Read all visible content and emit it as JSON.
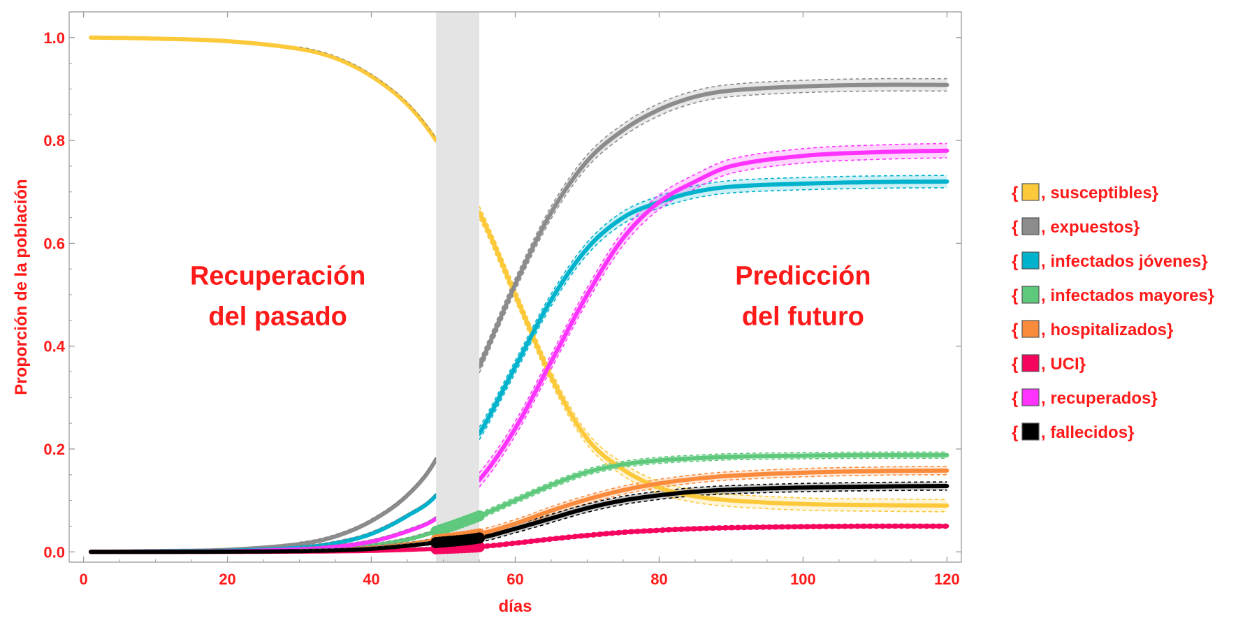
{
  "chart_data": {
    "type": "line",
    "xlabel": "días",
    "ylabel": "Proporción de la población",
    "xlim": [
      -2,
      122
    ],
    "ylim": [
      -0.02,
      1.05
    ],
    "xticks": [
      0,
      20,
      40,
      60,
      80,
      100,
      120
    ],
    "yticks": [
      0.0,
      0.2,
      0.4,
      0.6,
      0.8,
      1.0
    ],
    "xtick_labels": [
      "0",
      "20",
      "40",
      "60",
      "80",
      "100",
      "120"
    ],
    "ytick_labels": [
      "0.0",
      "0.2",
      "0.4",
      "0.6",
      "0.8",
      "1.0"
    ],
    "legend_position": "right",
    "shaded_region": {
      "x_start": 49,
      "x_end": 55,
      "color": "#e4e4e4"
    },
    "annotations": [
      {
        "lines": [
          "Recuperación",
          "del pasado"
        ],
        "x": 27,
        "y": 0.52
      },
      {
        "lines": [
          "Predicción",
          "del futuro"
        ],
        "x": 100,
        "y": 0.52
      }
    ],
    "x": [
      1,
      10,
      20,
      30,
      35,
      40,
      45,
      49,
      55,
      60,
      65,
      70,
      75,
      80,
      85,
      90,
      100,
      110,
      120
    ],
    "series": [
      {
        "name": "susceptibles",
        "color": "#fcc93a",
        "values": [
          1.0,
          0.998,
          0.993,
          0.978,
          0.96,
          0.925,
          0.87,
          0.8,
          0.66,
          0.5,
          0.34,
          0.22,
          0.16,
          0.125,
          0.108,
          0.1,
          0.093,
          0.091,
          0.09
        ],
        "band": 0.012
      },
      {
        "name": "expuestos",
        "color": "#8c8c8c",
        "values": [
          0.0,
          0.0015,
          0.004,
          0.015,
          0.03,
          0.06,
          0.11,
          0.18,
          0.36,
          0.52,
          0.66,
          0.76,
          0.82,
          0.86,
          0.885,
          0.897,
          0.905,
          0.908,
          0.908
        ],
        "band": 0.012
      },
      {
        "name": "infectados jóvenes",
        "color": "#00b2cc",
        "values": [
          0.0,
          0.0008,
          0.002,
          0.008,
          0.017,
          0.035,
          0.07,
          0.11,
          0.23,
          0.36,
          0.49,
          0.59,
          0.65,
          0.68,
          0.7,
          0.71,
          0.716,
          0.719,
          0.72
        ],
        "band": 0.012
      },
      {
        "name": "infectados mayores",
        "color": "#5ec97c",
        "values": [
          0.0,
          0.0002,
          0.0008,
          0.003,
          0.006,
          0.012,
          0.024,
          0.04,
          0.07,
          0.1,
          0.13,
          0.155,
          0.17,
          0.178,
          0.182,
          0.185,
          0.187,
          0.188,
          0.188
        ],
        "band": 0.006
      },
      {
        "name": "hospitalizados",
        "color": "#fb8b3c",
        "values": [
          0.0,
          0.0001,
          0.0005,
          0.002,
          0.004,
          0.008,
          0.015,
          0.023,
          0.035,
          0.055,
          0.08,
          0.102,
          0.12,
          0.133,
          0.142,
          0.148,
          0.154,
          0.157,
          0.158
        ],
        "band": 0.008
      },
      {
        "name": "UCI",
        "color": "#f5055e",
        "values": [
          0.0,
          0.0,
          0.0001,
          0.0005,
          0.001,
          0.002,
          0.004,
          0.006,
          0.01,
          0.017,
          0.025,
          0.032,
          0.038,
          0.042,
          0.045,
          0.047,
          0.049,
          0.05,
          0.05
        ],
        "band": 0.004
      },
      {
        "name": "recuperados",
        "color": "#ff33ff",
        "values": [
          0.0,
          0.0003,
          0.001,
          0.005,
          0.01,
          0.02,
          0.04,
          0.065,
          0.14,
          0.24,
          0.37,
          0.5,
          0.61,
          0.68,
          0.72,
          0.75,
          0.77,
          0.777,
          0.78
        ],
        "band": 0.014
      },
      {
        "name": "fallecidos",
        "color": "#000000",
        "values": [
          0.0,
          0.0001,
          0.0004,
          0.0015,
          0.003,
          0.006,
          0.012,
          0.018,
          0.027,
          0.045,
          0.065,
          0.085,
          0.1,
          0.11,
          0.117,
          0.121,
          0.125,
          0.127,
          0.128
        ],
        "band": 0.008
      }
    ]
  }
}
